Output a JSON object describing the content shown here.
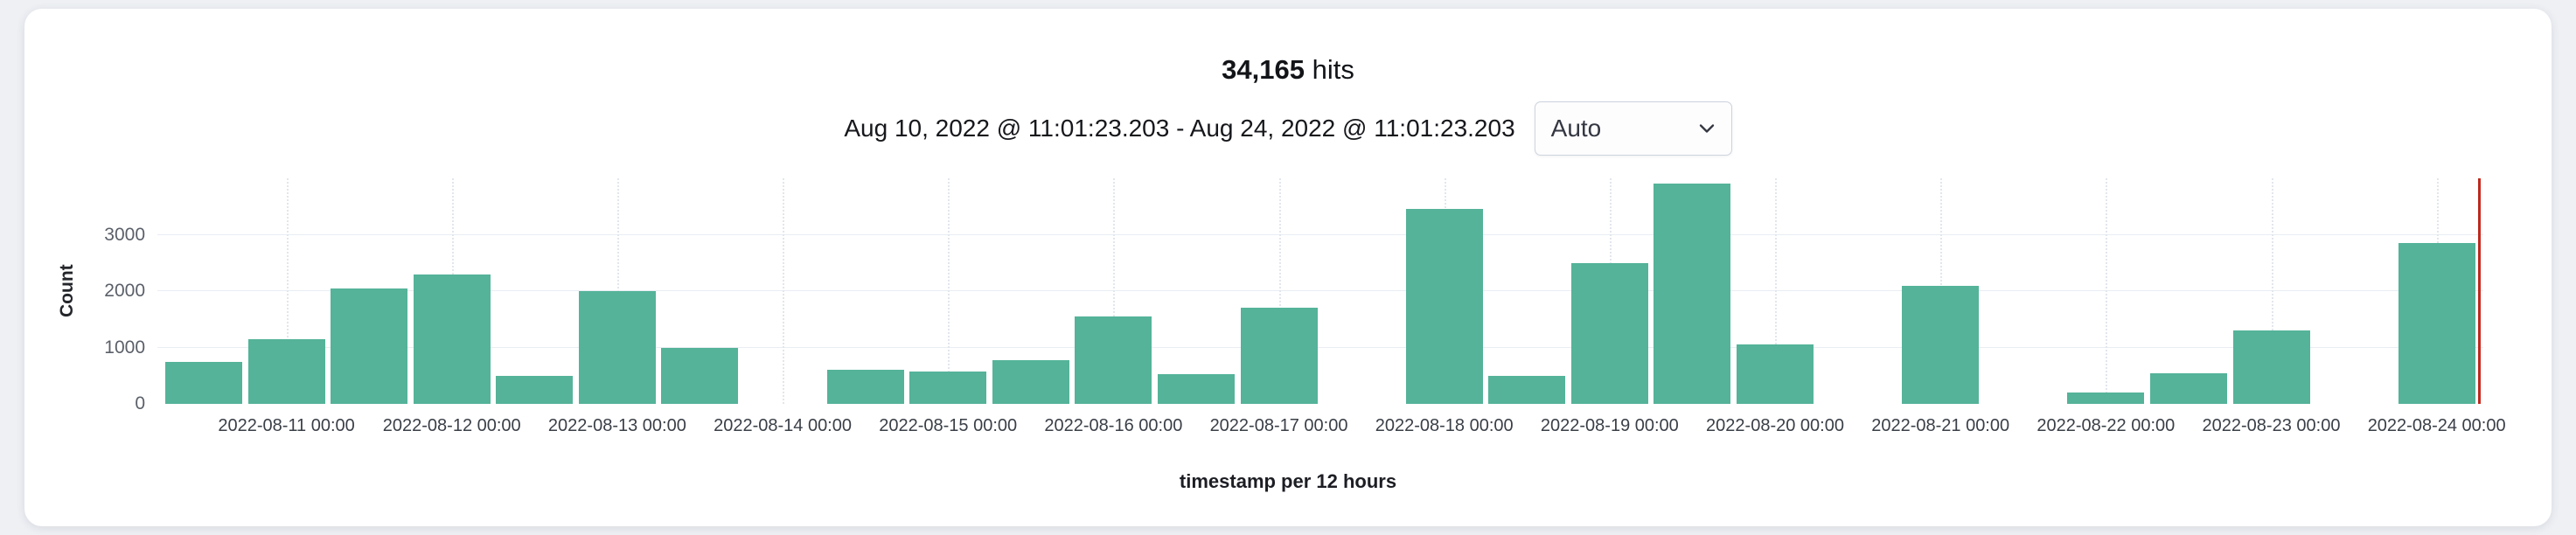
{
  "header": {
    "hits_count": "34,165",
    "hits_label": "hits",
    "time_range": "Aug 10, 2022 @ 11:01:23.203 - Aug 24, 2022 @ 11:01:23.203",
    "interval_select": {
      "value": "Auto"
    }
  },
  "chart_data": {
    "type": "bar",
    "title": "34,165 hits",
    "xlabel": "timestamp per 12 hours",
    "ylabel": "Count",
    "ylim": [
      0,
      4000
    ],
    "y_ticks": [
      0,
      1000,
      2000,
      3000
    ],
    "bucket_interval": "12h",
    "grid": true,
    "bar_color": "#54b399",
    "current_time_marker_color": "#bf2a1f",
    "x_tick_labels": [
      "2022-08-11 00:00",
      "2022-08-12 00:00",
      "2022-08-13 00:00",
      "2022-08-14 00:00",
      "2022-08-15 00:00",
      "2022-08-16 00:00",
      "2022-08-17 00:00",
      "2022-08-18 00:00",
      "2022-08-19 00:00",
      "2022-08-20 00:00",
      "2022-08-21 00:00",
      "2022-08-22 00:00",
      "2022-08-23 00:00",
      "2022-08-24 00:00"
    ],
    "buckets": [
      {
        "time": "2022-08-10 12:00",
        "count": 750
      },
      {
        "time": "2022-08-11 00:00",
        "count": 1150
      },
      {
        "time": "2022-08-11 12:00",
        "count": 2050
      },
      {
        "time": "2022-08-12 00:00",
        "count": 2300
      },
      {
        "time": "2022-08-12 12:00",
        "count": 500
      },
      {
        "time": "2022-08-13 00:00",
        "count": 2000
      },
      {
        "time": "2022-08-13 12:00",
        "count": 1000
      },
      {
        "time": "2022-08-14 00:00",
        "count": 0
      },
      {
        "time": "2022-08-14 12:00",
        "count": 600
      },
      {
        "time": "2022-08-15 00:00",
        "count": 580
      },
      {
        "time": "2022-08-15 12:00",
        "count": 780
      },
      {
        "time": "2022-08-16 00:00",
        "count": 1550
      },
      {
        "time": "2022-08-16 12:00",
        "count": 520
      },
      {
        "time": "2022-08-17 00:00",
        "count": 1700
      },
      {
        "time": "2022-08-17 12:00",
        "count": 0
      },
      {
        "time": "2022-08-18 00:00",
        "count": 3450
      },
      {
        "time": "2022-08-18 12:00",
        "count": 500
      },
      {
        "time": "2022-08-19 00:00",
        "count": 2500
      },
      {
        "time": "2022-08-19 12:00",
        "count": 3900
      },
      {
        "time": "2022-08-20 00:00",
        "count": 1050
      },
      {
        "time": "2022-08-20 12:00",
        "count": 0
      },
      {
        "time": "2022-08-21 00:00",
        "count": 2100
      },
      {
        "time": "2022-08-21 12:00",
        "count": 0
      },
      {
        "time": "2022-08-22 00:00",
        "count": 200
      },
      {
        "time": "2022-08-22 12:00",
        "count": 550
      },
      {
        "time": "2022-08-23 00:00",
        "count": 1300
      },
      {
        "time": "2022-08-23 12:00",
        "count": 0
      },
      {
        "time": "2022-08-24 00:00",
        "count": 2850
      }
    ]
  }
}
